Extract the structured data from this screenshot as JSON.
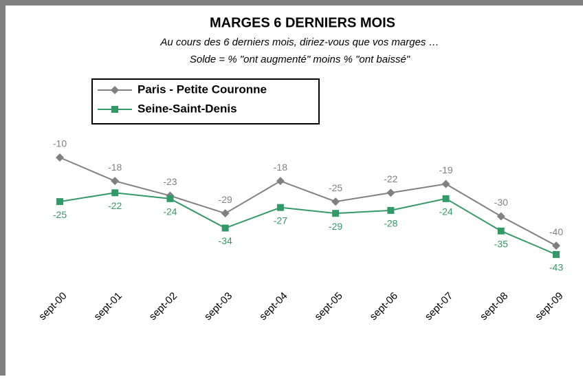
{
  "chart_data": {
    "type": "line",
    "title": "MARGES 6 DERNIERS MOIS",
    "subtitle": "Au cours des 6 derniers mois, diriez-vous que vos marges …",
    "subtitle2": "Solde = %  \"ont augmenté\"  moins % \"ont baissé\"",
    "categories": [
      "sept-00",
      "sept-01",
      "sept-02",
      "sept-03",
      "sept-04",
      "sept-05",
      "sept-06",
      "sept-07",
      "sept-08",
      "sept-09"
    ],
    "series": [
      {
        "name": "Paris - Petite Couronne",
        "color": "#808080",
        "marker": "diamond",
        "values": [
          -10,
          -18,
          -23,
          -29,
          -18,
          -25,
          -22,
          -19,
          -30,
          -40
        ]
      },
      {
        "name": "Seine-Saint-Denis",
        "color": "#339966",
        "marker": "square",
        "values": [
          -25,
          -22,
          -24,
          -34,
          -27,
          -29,
          -28,
          -24,
          -35,
          -43
        ]
      }
    ]
  }
}
